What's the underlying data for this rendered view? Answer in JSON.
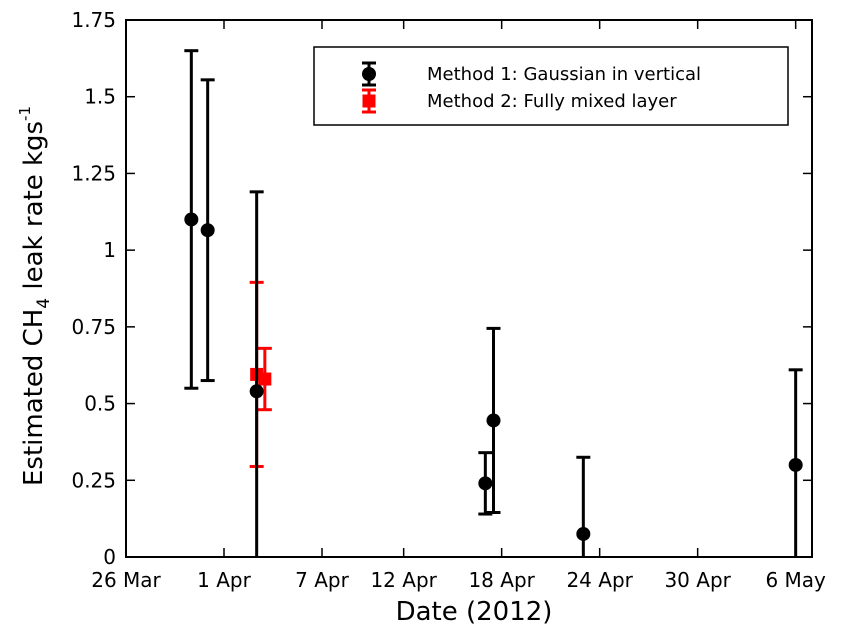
{
  "chart_data": {
    "type": "scatter",
    "xlabel": "Date (2012)",
    "ylabel": {
      "prefix": "Estimated CH",
      "subscript": "4",
      "middle": " leak rate kgs",
      "superscript": "-1"
    },
    "xlim": [
      "2012-03-26",
      "2012-05-07"
    ],
    "ylim": [
      0,
      1.75
    ],
    "x_ticks": [
      {
        "date": "2012-03-26",
        "label": "26 Mar"
      },
      {
        "date": "2012-04-01",
        "label": "1 Apr"
      },
      {
        "date": "2012-04-07",
        "label": "7 Apr"
      },
      {
        "date": "2012-04-12",
        "label": "12 Apr"
      },
      {
        "date": "2012-04-18",
        "label": "18 Apr"
      },
      {
        "date": "2012-04-24",
        "label": "24 Apr"
      },
      {
        "date": "2012-04-30",
        "label": "30 Apr"
      },
      {
        "date": "2012-05-06",
        "label": "6 May"
      }
    ],
    "y_ticks": [
      {
        "value": 0,
        "label": "0"
      },
      {
        "value": 0.25,
        "label": "0.25"
      },
      {
        "value": 0.5,
        "label": "0.5"
      },
      {
        "value": 0.75,
        "label": "0.75"
      },
      {
        "value": 1,
        "label": "1"
      },
      {
        "value": 1.25,
        "label": "1.25"
      },
      {
        "value": 1.5,
        "label": "1.5"
      },
      {
        "value": 1.75,
        "label": "1.75"
      }
    ],
    "grid": false,
    "legend_position": "top-right",
    "series": [
      {
        "name": "Method 1: Gaussian in vertical",
        "color": "#000000",
        "marker": "circle",
        "points": [
          {
            "x": "2012-03-30",
            "y": 1.1,
            "ylow": 0.55,
            "yhigh": 1.65
          },
          {
            "x": "2012-03-31",
            "y": 1.065,
            "ylow": 0.575,
            "yhigh": 1.555
          },
          {
            "x": "2012-04-03",
            "y": 0.54,
            "ylow": 0.0,
            "yhigh": 1.19
          },
          {
            "x": "2012-04-17",
            "y": 0.24,
            "ylow": 0.14,
            "yhigh": 0.34
          },
          {
            "x": "2012-04-17T12:00",
            "y": 0.445,
            "ylow": 0.145,
            "yhigh": 0.745
          },
          {
            "x": "2012-04-23",
            "y": 0.075,
            "ylow": 0.0,
            "yhigh": 0.325
          },
          {
            "x": "2012-05-06",
            "y": 0.3,
            "ylow": 0.0,
            "yhigh": 0.61
          }
        ]
      },
      {
        "name": "Method 2: Fully mixed layer",
        "color": "#ff0000",
        "marker": "square",
        "points": [
          {
            "x": "2012-04-03",
            "y": 0.595,
            "ylow": 0.295,
            "yhigh": 0.895
          },
          {
            "x": "2012-04-03T12:00",
            "y": 0.58,
            "ylow": 0.48,
            "yhigh": 0.68
          }
        ]
      }
    ]
  }
}
